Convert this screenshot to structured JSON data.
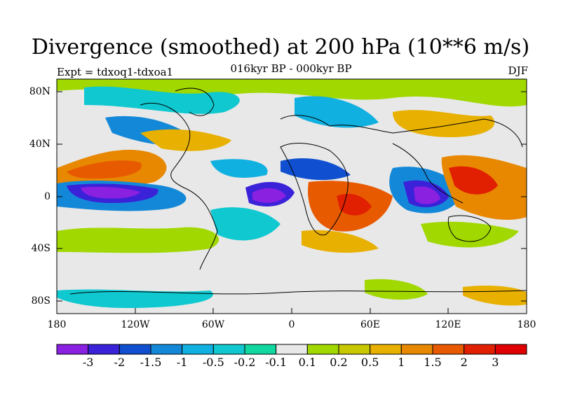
{
  "title": "Divergence (smoothed) at 200 hPa (10**6 m/s)",
  "subtitle": "016kyr BP - 000kyr BP",
  "experiment_label": "Expt = tdxoq1-tdxoa1",
  "season_label": "DJF",
  "axes": {
    "lat_ticks": [
      "80N",
      "40N",
      "0",
      "40S",
      "80S"
    ],
    "lon_ticks": [
      "180",
      "120W",
      "60W",
      "0",
      "60E",
      "120E",
      "180"
    ]
  },
  "colorbar": {
    "labels": [
      "-3",
      "-2",
      "-1.5",
      "-1",
      "-0.5",
      "-0.2",
      "-0.1",
      "0.1",
      "0.2",
      "0.5",
      "1",
      "1.5",
      "2",
      "3"
    ],
    "colors": [
      "#8a20e0",
      "#3a22d8",
      "#1050d0",
      "#1488d8",
      "#10b0e0",
      "#10c8d0",
      "#10d8a0",
      "#e8e8e8",
      "#a0d800",
      "#c8c800",
      "#e8b000",
      "#e88800",
      "#e85a00",
      "#e02000",
      "#e00000"
    ]
  }
}
